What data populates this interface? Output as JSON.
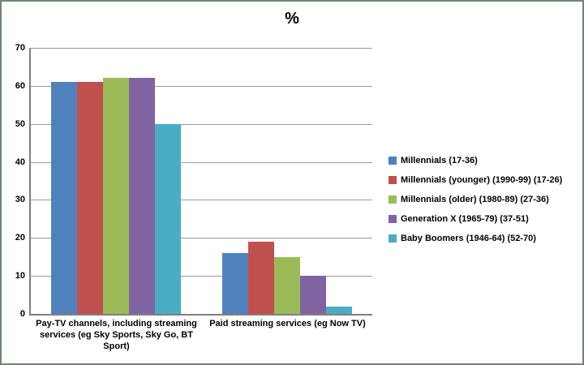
{
  "chart_data": {
    "type": "bar",
    "title": "%",
    "categories": [
      "Pay-TV channels, including streaming services (eg Sky Sports, Sky Go, BT Sport)",
      "Paid streaming services (eg Now TV)"
    ],
    "series": [
      {
        "name": "Millennials (17-36)",
        "color": "#4F81BD",
        "values": [
          61,
          16
        ]
      },
      {
        "name": "Millennials (younger) (1990-99) (17-26)",
        "color": "#C0504D",
        "values": [
          61,
          19
        ]
      },
      {
        "name": "Millennials (older) (1980-89) (27-36)",
        "color": "#9BBB59",
        "values": [
          62,
          15
        ]
      },
      {
        "name": "Generation X (1965-79) (37-51)",
        "color": "#8064A2",
        "values": [
          62,
          10
        ]
      },
      {
        "name": "Baby Boomers (1946-64) (52-70)",
        "color": "#4BACC6",
        "values": [
          50,
          2
        ]
      }
    ],
    "y_axis": {
      "min": 0,
      "max": 70,
      "step": 10,
      "tick_labels": [
        "0",
        "10",
        "20",
        "30",
        "40",
        "50",
        "60",
        "70"
      ]
    },
    "xlabel": "",
    "ylabel": "",
    "grid": true,
    "legend_position": "right"
  },
  "colors": {
    "frame_border": "#6E876E",
    "axis": "#808080",
    "gridline": "#9A9A9A",
    "text": "#000000",
    "background": "#FFFFFF"
  }
}
